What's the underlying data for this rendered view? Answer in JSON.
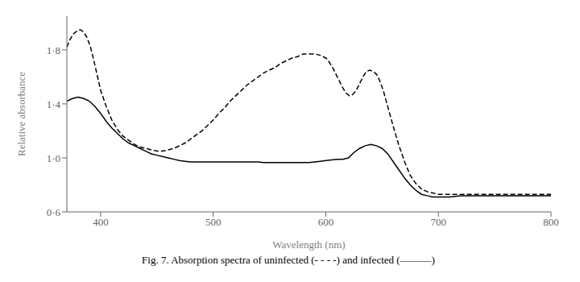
{
  "chart_data": {
    "type": "line",
    "xlabel": "Wavelength (nm)",
    "ylabel": "Relative absorbance",
    "caption": "Fig. 7. Absorption spectra of uninfected (- - - -) and infected (———)",
    "xlim": [
      370,
      800
    ],
    "ylim": [
      0.6,
      2.05
    ],
    "xticks": [
      400,
      500,
      600,
      700,
      800
    ],
    "yticks": [
      {
        "value": 0.6,
        "label": "0·6"
      },
      {
        "value": 1.0,
        "label": "1·0"
      },
      {
        "value": 1.4,
        "label": "1·4"
      },
      {
        "value": 1.8,
        "label": "1·8"
      }
    ],
    "series": [
      {
        "color": "#000000",
        "line_style": "solid",
        "x": [
          370,
          375,
          380,
          385,
          390,
          395,
          400,
          405,
          410,
          415,
          420,
          425,
          430,
          435,
          440,
          445,
          450,
          455,
          460,
          465,
          470,
          475,
          480,
          485,
          490,
          495,
          500,
          505,
          510,
          515,
          520,
          525,
          530,
          535,
          540,
          545,
          550,
          555,
          560,
          565,
          570,
          575,
          580,
          585,
          590,
          595,
          600,
          605,
          610,
          615,
          620,
          625,
          630,
          635,
          640,
          645,
          650,
          655,
          660,
          665,
          670,
          675,
          680,
          685,
          690,
          695,
          700,
          710,
          720,
          730,
          740,
          750,
          760,
          770,
          780,
          790,
          800
        ],
        "values": [
          1.42,
          1.44,
          1.45,
          1.44,
          1.42,
          1.38,
          1.33,
          1.27,
          1.22,
          1.18,
          1.14,
          1.11,
          1.09,
          1.07,
          1.05,
          1.03,
          1.02,
          1.01,
          1.0,
          0.99,
          0.98,
          0.975,
          0.97,
          0.97,
          0.97,
          0.97,
          0.97,
          0.97,
          0.97,
          0.97,
          0.97,
          0.97,
          0.97,
          0.97,
          0.97,
          0.965,
          0.965,
          0.965,
          0.965,
          0.965,
          0.965,
          0.965,
          0.965,
          0.965,
          0.97,
          0.975,
          0.98,
          0.985,
          0.99,
          0.99,
          1.0,
          1.04,
          1.07,
          1.09,
          1.1,
          1.09,
          1.07,
          1.03,
          0.97,
          0.91,
          0.85,
          0.8,
          0.76,
          0.73,
          0.72,
          0.71,
          0.71,
          0.71,
          0.72,
          0.72,
          0.72,
          0.72,
          0.72,
          0.72,
          0.72,
          0.72,
          0.72
        ]
      },
      {
        "color": "#000000",
        "line_style": "dashed",
        "x": [
          370,
          373,
          376,
          379,
          382,
          385,
          388,
          391,
          394,
          397,
          400,
          405,
          410,
          415,
          420,
          425,
          430,
          435,
          440,
          445,
          450,
          455,
          460,
          465,
          470,
          475,
          480,
          485,
          490,
          495,
          500,
          505,
          510,
          515,
          520,
          525,
          530,
          535,
          540,
          545,
          550,
          555,
          560,
          565,
          570,
          575,
          580,
          585,
          590,
          595,
          600,
          603,
          606,
          609,
          612,
          615,
          618,
          621,
          624,
          627,
          630,
          633,
          636,
          639,
          642,
          645,
          648,
          651,
          655,
          660,
          665,
          670,
          675,
          680,
          685,
          690,
          695,
          700,
          710,
          720,
          730,
          740,
          750,
          760,
          770,
          780,
          790,
          800
        ],
        "values": [
          1.82,
          1.88,
          1.92,
          1.94,
          1.95,
          1.93,
          1.89,
          1.82,
          1.72,
          1.61,
          1.5,
          1.38,
          1.28,
          1.21,
          1.16,
          1.13,
          1.1,
          1.08,
          1.07,
          1.06,
          1.05,
          1.05,
          1.06,
          1.07,
          1.09,
          1.11,
          1.14,
          1.17,
          1.2,
          1.24,
          1.28,
          1.33,
          1.37,
          1.42,
          1.46,
          1.5,
          1.54,
          1.57,
          1.6,
          1.63,
          1.65,
          1.67,
          1.7,
          1.72,
          1.74,
          1.75,
          1.77,
          1.77,
          1.77,
          1.76,
          1.74,
          1.71,
          1.67,
          1.62,
          1.57,
          1.52,
          1.48,
          1.46,
          1.47,
          1.5,
          1.55,
          1.6,
          1.64,
          1.65,
          1.64,
          1.62,
          1.57,
          1.5,
          1.38,
          1.23,
          1.09,
          0.97,
          0.87,
          0.81,
          0.77,
          0.75,
          0.74,
          0.73,
          0.73,
          0.73,
          0.73,
          0.73,
          0.73,
          0.73,
          0.73,
          0.73,
          0.73,
          0.73
        ]
      }
    ]
  }
}
